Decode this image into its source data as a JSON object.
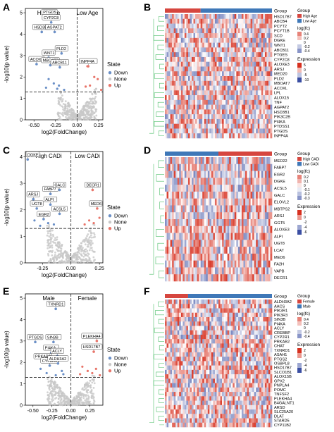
{
  "panels": [
    "A",
    "B",
    "C",
    "D",
    "E",
    "F"
  ],
  "colors": {
    "down": "#6a8fc7",
    "none": "#c8c8c8",
    "up": "#e8756a",
    "heat_low": "#3b4fa3",
    "heat_mid": "#ffffff",
    "heat_high": "#d7301f",
    "group_red": "#d6463f",
    "group_blue": "#3f78b8",
    "tree": "#4fbf6b"
  },
  "volcano_common": {
    "ylabel": "-log10(p value)",
    "xlabel": "log2(FoldChange)",
    "legend_title": "State",
    "legend_items": [
      "Down",
      "None",
      "Up"
    ]
  },
  "heatmap_common": {
    "group_label": "Group",
    "logfc_label": "log(fc)",
    "expression_label": "Expression"
  },
  "chart_data": [
    {
      "panel": "A",
      "type": "scatter",
      "left_label": "High Age",
      "right_label": "Low Age",
      "xlim": [
        -0.6,
        0.3
      ],
      "ylim": [
        0,
        5.2
      ],
      "xticks": [
        "-0.50",
        "-0.25",
        "0.00",
        "0.25"
      ],
      "xtick_values": [
        -0.5,
        -0.25,
        0,
        0.25
      ],
      "yticks": [
        "0",
        "1",
        "2",
        "3",
        "4",
        "5"
      ],
      "ytick_values": [
        0,
        1,
        2,
        3,
        4,
        5
      ],
      "threshold_y": 1.3,
      "labeled_points": [
        {
          "label": "PTGDS",
          "x": -0.32,
          "y": 4.8,
          "state": "Down"
        },
        {
          "label": "CYP2C8",
          "x": -0.3,
          "y": 4.55,
          "state": "Down"
        },
        {
          "label": "HSD3B1",
          "x": -0.41,
          "y": 4.1,
          "state": "Down"
        },
        {
          "label": "AGPAT2",
          "x": -0.26,
          "y": 4.1,
          "state": "Down"
        },
        {
          "label": "PLD2",
          "x": -0.18,
          "y": 3.1,
          "state": "Down"
        },
        {
          "label": "WNT1",
          "x": -0.33,
          "y": 2.9,
          "state": "Down"
        },
        {
          "label": "ACOXL",
          "x": -0.47,
          "y": 2.6,
          "state": "Down"
        },
        {
          "label": "MBOAT7",
          "x": -0.31,
          "y": 2.55,
          "state": "Down"
        },
        {
          "label": "ABCB11",
          "x": -0.2,
          "y": 2.45,
          "state": "Down"
        },
        {
          "label": "INPP4A",
          "x": 0.13,
          "y": 2.5,
          "state": "Up"
        }
      ],
      "up_points": [
        [
          0.12,
          2.5
        ],
        [
          0.2,
          2.0
        ],
        [
          0.24,
          1.9
        ],
        [
          0.15,
          1.6
        ],
        [
          0.28,
          1.4
        ],
        [
          0.1,
          1.55
        ]
      ],
      "down_points": [
        [
          -0.33,
          1.9
        ],
        [
          -0.27,
          1.7
        ],
        [
          -0.21,
          1.6
        ],
        [
          -0.36,
          1.5
        ],
        [
          -0.23,
          1.45
        ],
        [
          -0.15,
          1.4
        ]
      ]
    },
    {
      "panel": "C",
      "type": "scatter",
      "left_label": "High CADi",
      "right_label": "Low CADi",
      "xlim": [
        -0.4,
        0.28
      ],
      "ylim": [
        0,
        4.2
      ],
      "xticks": [
        "-0.25",
        "0.00",
        "0.25"
      ],
      "xtick_values": [
        -0.25,
        0,
        0.25
      ],
      "yticks": [
        "0",
        "1",
        "2",
        "3",
        "4"
      ],
      "ytick_values": [
        0,
        1,
        2,
        3,
        4
      ],
      "threshold_y": 1.3,
      "labeled_points": [
        {
          "label": "DGKE",
          "x": -0.38,
          "y": 3.9,
          "state": "Down"
        },
        {
          "label": "ARSJ",
          "x": -0.33,
          "y": 2.4,
          "state": "Down"
        },
        {
          "label": "FABP7",
          "x": -0.18,
          "y": 2.6,
          "state": "Down"
        },
        {
          "label": "GALC",
          "x": -0.1,
          "y": 2.75,
          "state": "Down"
        },
        {
          "label": "UGT8",
          "x": -0.3,
          "y": 2.05,
          "state": "Down"
        },
        {
          "label": "ALPI",
          "x": -0.18,
          "y": 2.2,
          "state": "Down"
        },
        {
          "label": "EGR2",
          "x": -0.24,
          "y": 1.65,
          "state": "Down"
        },
        {
          "label": "ACSL5",
          "x": -0.1,
          "y": 1.85,
          "state": "Down"
        },
        {
          "label": "DECR1",
          "x": 0.19,
          "y": 2.75,
          "state": "Up"
        },
        {
          "label": "MED6",
          "x": 0.23,
          "y": 2.05,
          "state": "Up"
        }
      ],
      "up_points": [
        [
          0.16,
          1.6
        ],
        [
          0.2,
          1.5
        ],
        [
          0.12,
          1.45
        ],
        [
          0.25,
          1.7
        ]
      ],
      "down_points": [
        [
          -0.2,
          1.5
        ],
        [
          -0.27,
          1.4
        ],
        [
          -0.15,
          1.45
        ],
        [
          -0.32,
          1.6
        ]
      ]
    },
    {
      "panel": "E",
      "type": "scatter",
      "left_label": "Male",
      "right_label": "Female",
      "xlim": [
        -0.6,
        0.42
      ],
      "ylim": [
        0,
        5.2
      ],
      "xticks": [
        "-0.50",
        "-0.25",
        "0.00",
        "0.25"
      ],
      "xtick_values": [
        -0.5,
        -0.25,
        0,
        0.25
      ],
      "yticks": [
        "0",
        "1",
        "2",
        "3",
        "4",
        "5"
      ],
      "ytick_values": [
        0,
        1,
        2,
        3,
        4,
        5
      ],
      "threshold_y": 1.3,
      "labeled_points": [
        {
          "label": "TXNRD1",
          "x": -0.2,
          "y": 4.5,
          "state": "Down"
        },
        {
          "label": "PTGDS",
          "x": -0.47,
          "y": 2.95,
          "state": "Down"
        },
        {
          "label": "SIN3B",
          "x": -0.23,
          "y": 2.95,
          "state": "Down"
        },
        {
          "label": "PI4KA",
          "x": -0.26,
          "y": 2.45,
          "state": "Down"
        },
        {
          "label": "ACLY",
          "x": -0.18,
          "y": 2.3,
          "state": "Down"
        },
        {
          "label": "PRKAB2",
          "x": -0.37,
          "y": 2.05,
          "state": "Down"
        },
        {
          "label": "CYP2R1",
          "x": -0.28,
          "y": 1.85,
          "state": "Down"
        },
        {
          "label": "ALDH3A2",
          "x": -0.17,
          "y": 1.95,
          "state": "Down"
        },
        {
          "label": "PLEKHA4",
          "x": 0.34,
          "y": 3.0,
          "state": "Up"
        },
        {
          "label": "HSD17B7",
          "x": 0.3,
          "y": 2.5,
          "state": "Up"
        }
      ],
      "up_points": [
        [
          0.15,
          1.8
        ],
        [
          0.22,
          1.6
        ],
        [
          0.28,
          1.5
        ],
        [
          0.12,
          1.45
        ],
        [
          0.33,
          1.7
        ],
        [
          0.38,
          1.4
        ]
      ],
      "down_points": [
        [
          -0.12,
          1.6
        ],
        [
          -0.2,
          1.4
        ],
        [
          -0.32,
          1.5
        ],
        [
          -0.1,
          1.45
        ],
        [
          -0.4,
          1.7
        ]
      ]
    },
    {
      "panel": "B",
      "type": "heatmap",
      "legend_group_items": [
        "High Age",
        "Low Age"
      ],
      "group_order": [
        "High Age",
        "Low Age"
      ],
      "group_split": 0.34,
      "logfc_ticks": [
        "0.4",
        "0.2",
        "0",
        "-0.2",
        "-0.4"
      ],
      "expression_ticks": [
        "5",
        "0",
        "-5",
        "-10"
      ],
      "row_labels": [
        "HSD17B7",
        "ABCB4",
        "PCYT2",
        "PCYT1B",
        "SCD",
        "DGKE",
        "WNT1",
        "ABCB11",
        "PTGES",
        "CYP2C8",
        "ALOXE3",
        "ARSJ",
        "MED20",
        "PLD2",
        "MBOAT7",
        "ACOXL",
        "LPL",
        "ALOX15",
        "TNF",
        "AGPAT2",
        "HSD3B1",
        "PIK3C2B",
        "PI4KA",
        "PTDSS1",
        "PTGDS",
        "INPP4A"
      ]
    },
    {
      "panel": "D",
      "type": "heatmap",
      "legend_group_items": [
        "High CADi",
        "Low CADi"
      ],
      "group_order": [
        "Low CADi",
        "High CADi"
      ],
      "group_split": 0.5,
      "logfc_ticks": [
        "0.2",
        "0.1",
        "0",
        "-0.1",
        "-0.2",
        "-0.3"
      ],
      "expression_ticks": [
        "2",
        "0",
        "-2",
        "-4",
        "-6"
      ],
      "row_labels": [
        "MED22",
        "FABP7",
        "EGR2",
        "DGKE",
        "ACSL5",
        "GALC",
        "ELOVL2",
        "MBTPS2",
        "ARSJ",
        "GGT5",
        "ALOXE3",
        "ALPI",
        "UGT8",
        "LCAT",
        "MED6",
        "FA2H",
        "VAPB",
        "DECR1"
      ]
    },
    {
      "panel": "F",
      "type": "heatmap",
      "legend_group_items": [
        "Female",
        "Male"
      ],
      "group_order": [
        "Female",
        "Male"
      ],
      "group_split": 0.22,
      "logfc_ticks": [
        "0.4",
        "0.2",
        "0",
        "-0.2",
        "-0.4"
      ],
      "expression_ticks": [
        "2",
        "0",
        "-2",
        "-4",
        "-6"
      ],
      "row_labels": [
        "ALDH3A2",
        "AACS",
        "PIK3R1",
        "PIK3R3",
        "SIN3B",
        "PI4KA",
        "ACLY",
        "CREBBP",
        "CYP2R1",
        "PRKAB2",
        "CHAT",
        "TXNRD1",
        "ASAH1",
        "PTGS2",
        "OSBPL8",
        "HSD17B7",
        "SLCO1B1",
        "ALOX15B",
        "GPX2",
        "PNPLA4",
        "POMC",
        "TNFSF2",
        "PLEKHA4",
        "B4GALNT1",
        "ARSD",
        "SLC25A20",
        "DLAT",
        "STARD5",
        "CYP11B2"
      ]
    }
  ]
}
